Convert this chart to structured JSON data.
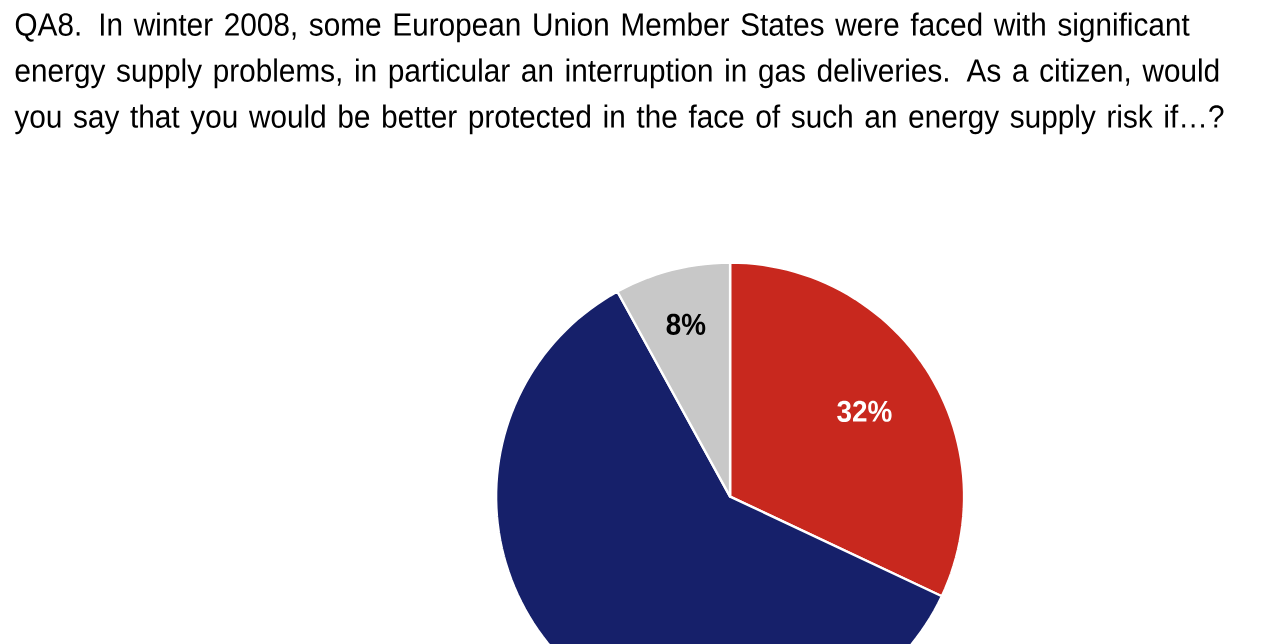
{
  "chart_data": {
    "type": "pie",
    "title": "QA8. In winter 2008, some European Union Member States were faced with significant energy supply problems, in particular an interruption in gas deliveries. As a citizen, would you say that you would be better protected in the face of such an energy supply risk if…?",
    "categories": [
      null,
      null,
      null
    ],
    "values": [
      32,
      60,
      8
    ],
    "colors": [
      "#c8281e",
      "#16206a",
      "#c8c8c8"
    ],
    "value_labels": [
      "32%",
      null,
      "8%"
    ]
  }
}
